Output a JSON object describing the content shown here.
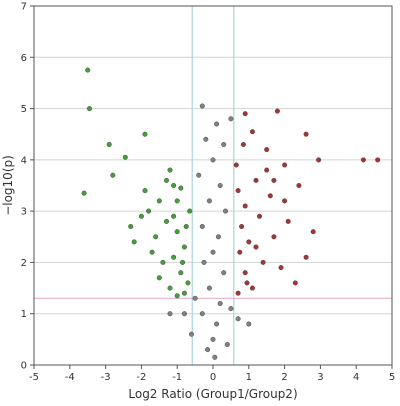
{
  "chart_data": {
    "type": "scatter",
    "xlabel": "Log2 Ratio (Group1/Group2)",
    "ylabel": "−log10(p)",
    "xlim": [
      -5,
      5
    ],
    "ylim": [
      0,
      7
    ],
    "x_ticks": [
      "-5",
      "-4",
      "-3",
      "-2",
      "-1",
      "0",
      "1",
      "2",
      "3",
      "4",
      "5"
    ],
    "y_ticks": [
      "0",
      "1",
      "2",
      "3",
      "4",
      "5",
      "6",
      "7"
    ],
    "grid": "horizontal",
    "thresholds": {
      "fold_change_x": [
        -0.58,
        0.58
      ],
      "p_value_y": 1.3
    },
    "colors": {
      "down": "#3a9a2e",
      "up": "#a32a2a",
      "neutral": "#7a7a7a",
      "threshold_vertical": "#a8d8d8",
      "threshold_horizontal": "#e8b0d0",
      "grid": "#d4d4d4"
    },
    "series": [
      {
        "points": [
          [
            -3.5,
            5.75
          ],
          [
            -3.45,
            5.0
          ],
          [
            -2.9,
            4.3
          ],
          [
            -2.45,
            4.05
          ],
          [
            -1.9,
            4.5
          ],
          [
            -1.2,
            3.8
          ],
          [
            -1.1,
            3.5
          ],
          [
            -1.5,
            3.2
          ],
          [
            -2.8,
            3.7
          ],
          [
            -3.6,
            3.35
          ],
          [
            -1.0,
            3.2
          ],
          [
            -1.8,
            3.0
          ],
          [
            -0.9,
            3.45
          ],
          [
            -1.3,
            2.8
          ],
          [
            -2.0,
            2.9
          ],
          [
            -0.75,
            2.7
          ],
          [
            -1.6,
            2.5
          ],
          [
            -1.0,
            2.6
          ],
          [
            -2.3,
            2.7
          ],
          [
            -1.1,
            2.1
          ],
          [
            -0.8,
            2.3
          ],
          [
            -1.4,
            2.0
          ],
          [
            -1.7,
            2.2
          ],
          [
            -0.9,
            1.8
          ],
          [
            -0.7,
            1.6
          ],
          [
            -1.2,
            1.5
          ],
          [
            -0.8,
            1.4
          ],
          [
            -1.5,
            1.7
          ],
          [
            -1.0,
            1.35
          ],
          [
            -2.2,
            2.4
          ],
          [
            -0.65,
            3.0
          ],
          [
            -1.9,
            3.4
          ],
          [
            -1.3,
            3.6
          ],
          [
            -0.85,
            2.0
          ],
          [
            -1.1,
            2.9
          ]
        ]
      },
      {
        "points": [
          [
            4.2,
            4.0
          ],
          [
            4.6,
            4.0
          ],
          [
            2.95,
            4.0
          ],
          [
            2.6,
            4.5
          ],
          [
            1.8,
            4.95
          ],
          [
            0.9,
            4.9
          ],
          [
            1.1,
            4.55
          ],
          [
            0.85,
            4.3
          ],
          [
            1.5,
            4.2
          ],
          [
            2.0,
            3.9
          ],
          [
            1.2,
            3.6
          ],
          [
            0.7,
            3.4
          ],
          [
            1.6,
            3.3
          ],
          [
            2.4,
            3.5
          ],
          [
            0.9,
            3.1
          ],
          [
            1.3,
            2.9
          ],
          [
            2.1,
            2.8
          ],
          [
            0.8,
            2.7
          ],
          [
            1.7,
            2.5
          ],
          [
            1.0,
            2.4
          ],
          [
            2.6,
            2.1
          ],
          [
            0.75,
            2.2
          ],
          [
            1.4,
            2.0
          ],
          [
            0.9,
            1.8
          ],
          [
            2.3,
            1.6
          ],
          [
            1.1,
            1.5
          ],
          [
            0.7,
            1.4
          ],
          [
            1.9,
            1.9
          ],
          [
            2.8,
            2.6
          ],
          [
            1.5,
            3.8
          ],
          [
            0.65,
            3.9
          ],
          [
            1.2,
            2.3
          ],
          [
            2.0,
            3.2
          ],
          [
            0.95,
            1.6
          ],
          [
            1.7,
            3.6
          ]
        ]
      },
      {
        "points": [
          [
            -0.3,
            5.05
          ],
          [
            0.5,
            4.8
          ],
          [
            0.1,
            4.7
          ],
          [
            -0.2,
            4.4
          ],
          [
            0.3,
            4.3
          ],
          [
            0.0,
            4.0
          ],
          [
            -0.4,
            3.7
          ],
          [
            0.2,
            3.5
          ],
          [
            -0.1,
            3.2
          ],
          [
            0.35,
            3.0
          ],
          [
            -0.3,
            2.7
          ],
          [
            0.15,
            2.5
          ],
          [
            0.0,
            2.2
          ],
          [
            -0.25,
            2.0
          ],
          [
            0.3,
            1.8
          ],
          [
            -0.1,
            1.5
          ],
          [
            0.2,
            1.2
          ],
          [
            -0.3,
            1.0
          ],
          [
            0.1,
            0.8
          ],
          [
            0.0,
            0.5
          ],
          [
            -0.15,
            0.3
          ],
          [
            0.05,
            0.15
          ],
          [
            -0.5,
            1.3
          ],
          [
            0.5,
            1.1
          ],
          [
            -0.8,
            1.0
          ],
          [
            0.7,
            0.9
          ],
          [
            -0.6,
            0.6
          ],
          [
            0.4,
            0.4
          ],
          [
            -1.2,
            1.0
          ],
          [
            1.0,
            0.8
          ]
        ]
      }
    ]
  }
}
